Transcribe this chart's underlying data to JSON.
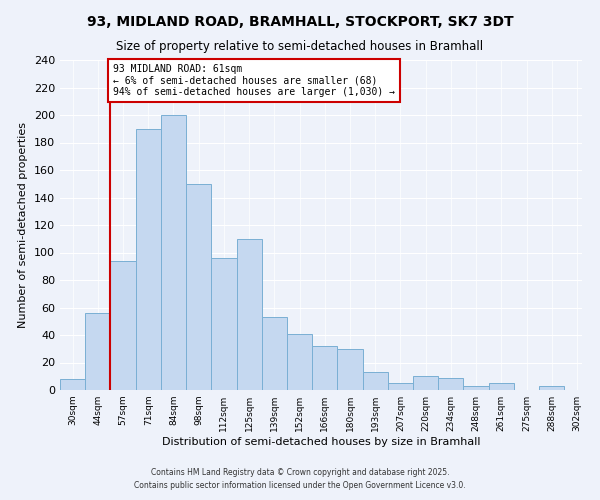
{
  "title": "93, MIDLAND ROAD, BRAMHALL, STOCKPORT, SK7 3DT",
  "subtitle": "Size of property relative to semi-detached houses in Bramhall",
  "xlabel": "Distribution of semi-detached houses by size in Bramhall",
  "ylabel": "Number of semi-detached properties",
  "bar_labels": [
    "30sqm",
    "44sqm",
    "57sqm",
    "71sqm",
    "84sqm",
    "98sqm",
    "112sqm",
    "125sqm",
    "139sqm",
    "152sqm",
    "166sqm",
    "180sqm",
    "193sqm",
    "207sqm",
    "220sqm",
    "234sqm",
    "248sqm",
    "261sqm",
    "275sqm",
    "288sqm",
    "302sqm"
  ],
  "bar_values": [
    8,
    56,
    94,
    190,
    200,
    150,
    96,
    110,
    53,
    41,
    32,
    30,
    13,
    5,
    10,
    9,
    3,
    5,
    0,
    3
  ],
  "bar_color": "#c5d8f0",
  "bar_edge_color": "#7aafd4",
  "property_line_label": "93 MIDLAND ROAD: 61sqm",
  "annotation_line1": "← 6% of semi-detached houses are smaller (68)",
  "annotation_line2": "94% of semi-detached houses are larger (1,030) →",
  "annotation_box_color": "#ffffff",
  "annotation_box_edge": "#cc0000",
  "vline_color": "#cc0000",
  "ylim": [
    0,
    240
  ],
  "yticks": [
    0,
    20,
    40,
    60,
    80,
    100,
    120,
    140,
    160,
    180,
    200,
    220,
    240
  ],
  "background_color": "#eef2fa",
  "grid_color": "#ffffff",
  "footer1": "Contains HM Land Registry data © Crown copyright and database right 2025.",
  "footer2": "Contains public sector information licensed under the Open Government Licence v3.0."
}
